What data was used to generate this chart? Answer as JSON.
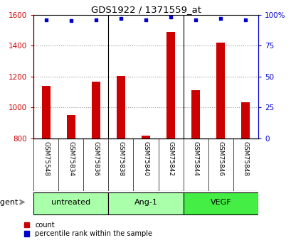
{
  "title": "GDS1922 / 1371559_at",
  "samples": [
    "GSM75548",
    "GSM75834",
    "GSM75836",
    "GSM75838",
    "GSM75840",
    "GSM75842",
    "GSM75844",
    "GSM75846",
    "GSM75848"
  ],
  "counts": [
    1140,
    950,
    1165,
    1205,
    820,
    1490,
    1110,
    1420,
    1035
  ],
  "percentiles": [
    96,
    95,
    96,
    97,
    96,
    98,
    96,
    97,
    96
  ],
  "bar_color": "#cc0000",
  "dot_color": "#0000cc",
  "ylim_left": [
    800,
    1600
  ],
  "ylim_right": [
    0,
    100
  ],
  "yticks_left": [
    800,
    1000,
    1200,
    1400,
    1600
  ],
  "yticks_right": [
    0,
    25,
    50,
    75,
    100
  ],
  "yticklabels_right": [
    "0",
    "25",
    "50",
    "75",
    "100%"
  ],
  "groups": [
    {
      "label": "untreated",
      "start": 0,
      "end": 2,
      "color": "#aaffaa"
    },
    {
      "label": "Ang-1",
      "start": 3,
      "end": 5,
      "color": "#aaffaa"
    },
    {
      "label": "VEGF",
      "start": 6,
      "end": 8,
      "color": "#44ee44"
    }
  ],
  "xlabel_agent": "agent",
  "legend_count_label": "count",
  "legend_pct_label": "percentile rank within the sample",
  "grid_color": "#999999",
  "tick_area_bg": "#cccccc",
  "bar_width": 0.35
}
